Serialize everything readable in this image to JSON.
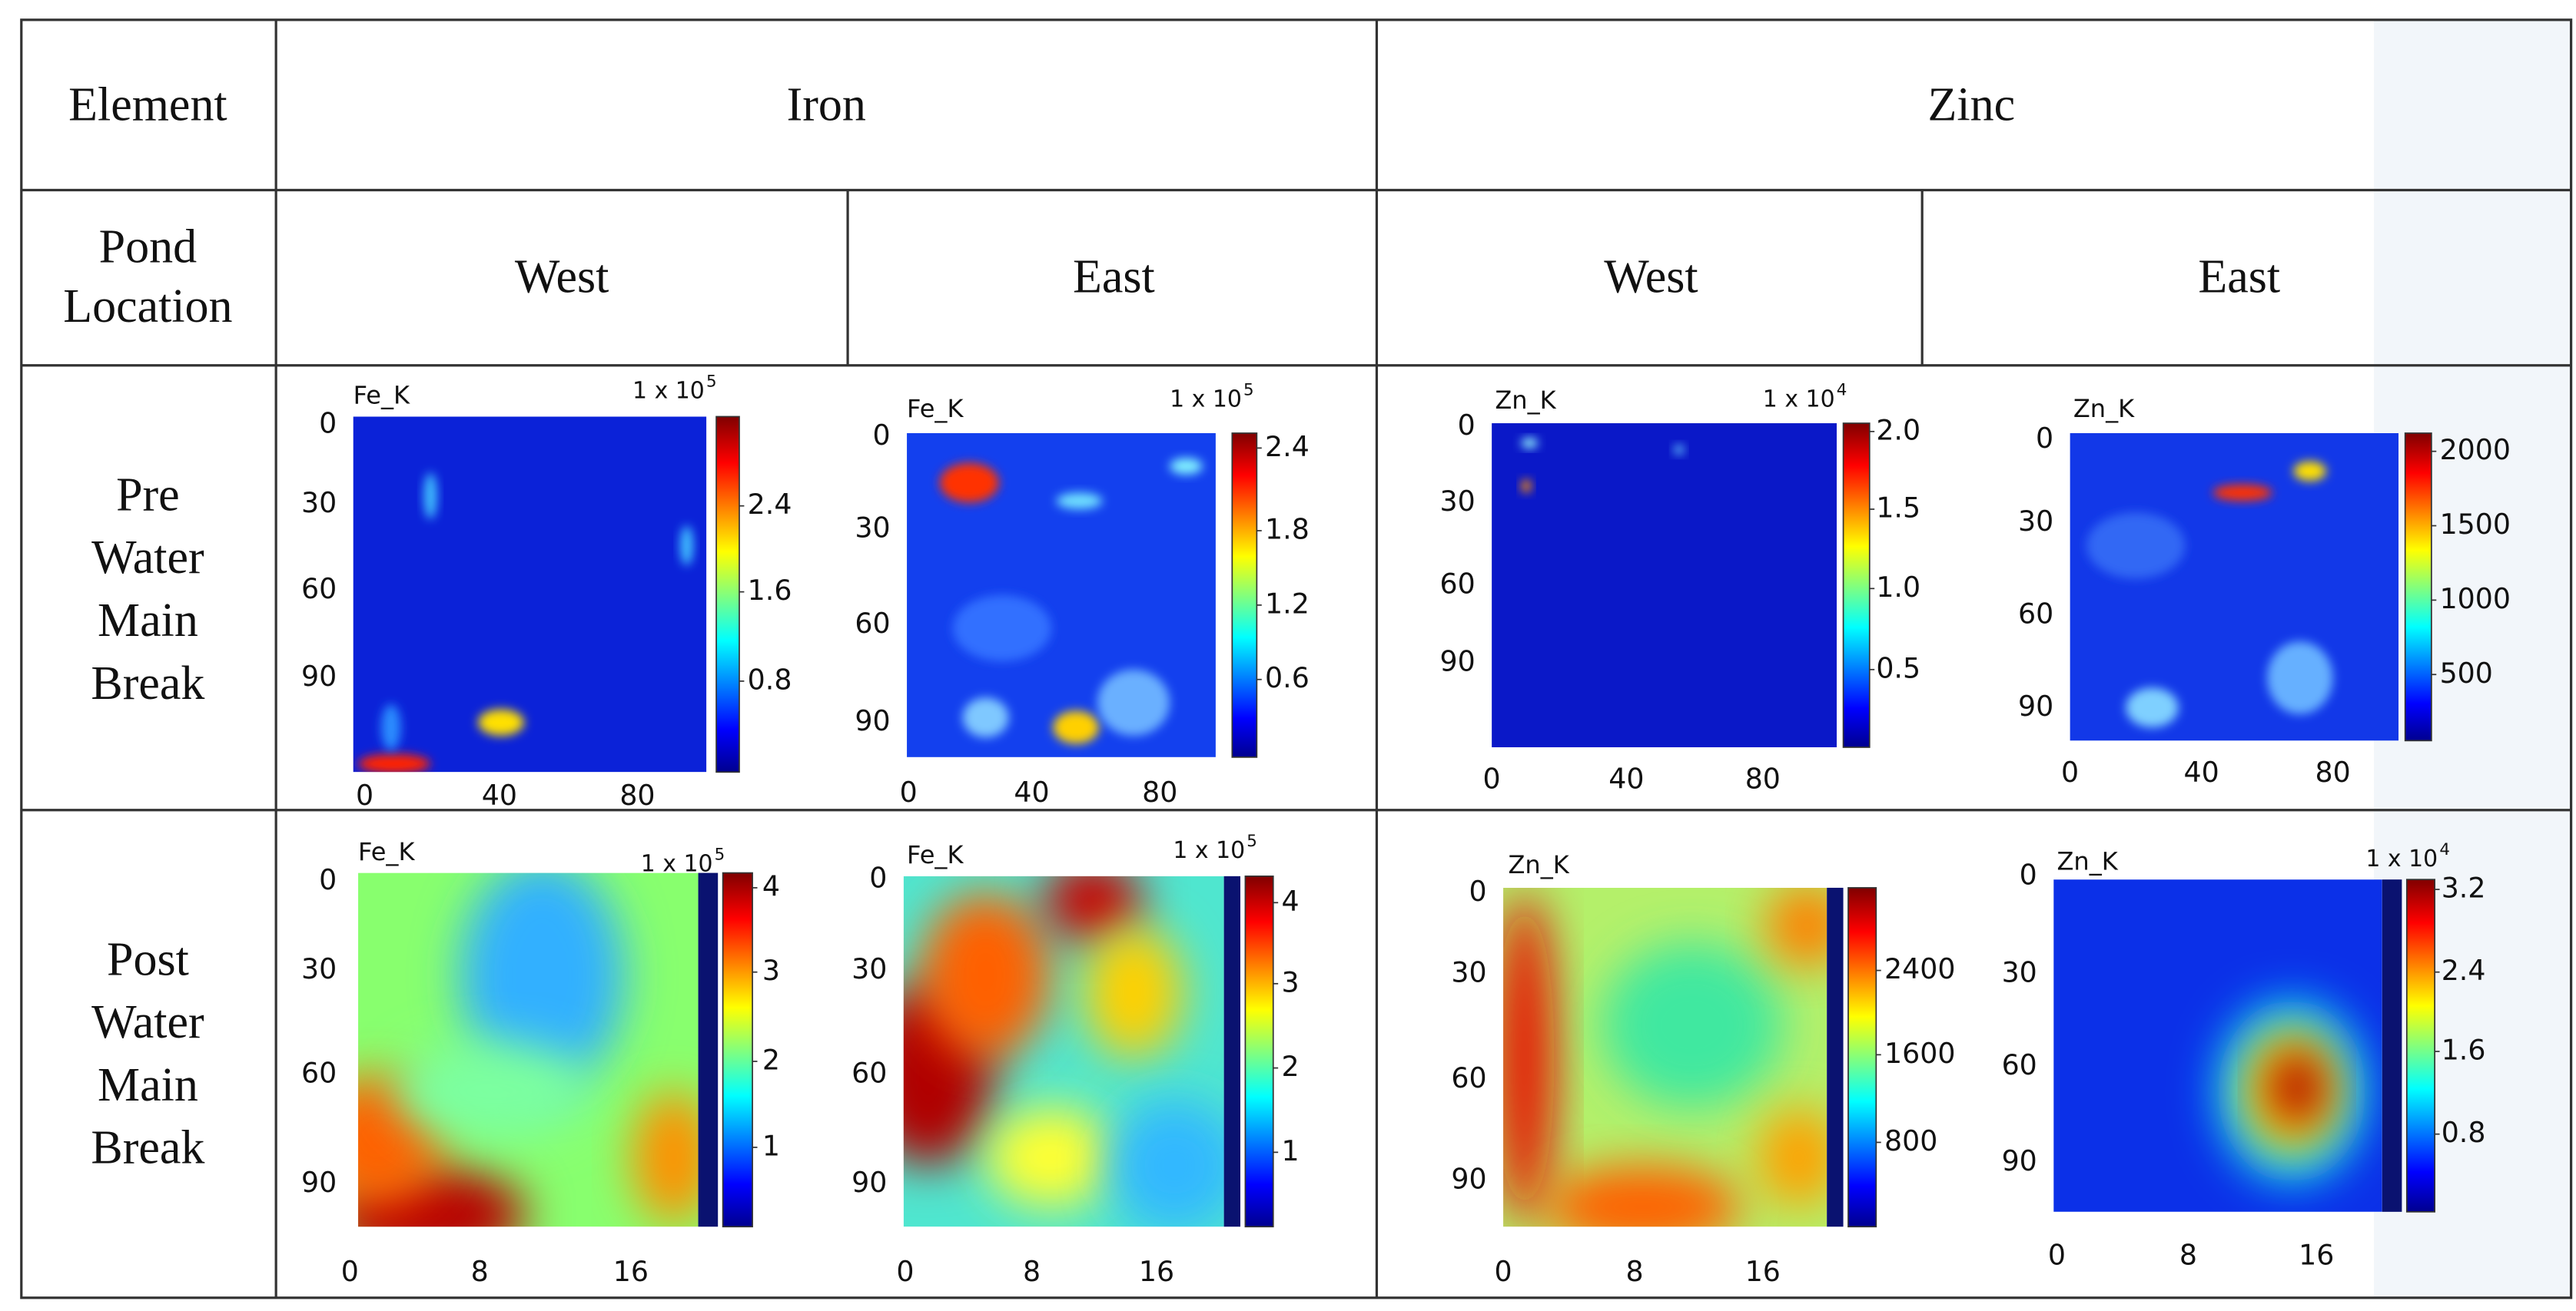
{
  "header": {
    "element": "Element",
    "iron": "Iron",
    "zinc": "Zinc"
  },
  "subheader": {
    "label": [
      "Pond",
      "Location"
    ],
    "columns": [
      "West",
      "East",
      "West",
      "East"
    ]
  },
  "rows": [
    {
      "label": [
        "Pre",
        "Water",
        "Main",
        "Break"
      ],
      "panels": [
        {
          "title": "Fe_K",
          "multiplier": {
            "base": "1 x 10",
            "exponent": "5"
          },
          "yticks": [
            0,
            30,
            60,
            90
          ],
          "xticks": [
            0,
            40,
            80
          ],
          "colorbar_ticks": [
            2.4,
            1.6,
            0.8
          ]
        },
        {
          "title": "Fe_K",
          "multiplier": {
            "base": "1 x 10",
            "exponent": "5"
          },
          "yticks": [
            0,
            30,
            60,
            90
          ],
          "xticks": [
            0,
            40,
            80
          ],
          "colorbar_ticks": [
            2.4,
            1.8,
            1.2,
            0.6
          ]
        },
        {
          "title": "Zn_K",
          "multiplier": {
            "base": "1 x 10",
            "exponent": "4"
          },
          "yticks": [
            0,
            30,
            60,
            90
          ],
          "xticks": [
            0,
            40,
            80
          ],
          "colorbar_ticks": [
            "2.0",
            1.5,
            "1.0",
            0.5
          ]
        },
        {
          "title": "Zn_K",
          "yticks": [
            0,
            30,
            60,
            90
          ],
          "xticks": [
            0,
            40,
            80
          ],
          "colorbar_ticks": [
            2000,
            1500,
            1000,
            500
          ]
        }
      ]
    },
    {
      "label": [
        "Post",
        "Water",
        "Main",
        "Break"
      ],
      "panels": [
        {
          "title": "Fe_K",
          "multiplier": {
            "base": "1 x 10",
            "exponent": "5"
          },
          "yticks": [
            0,
            30,
            60,
            90
          ],
          "xticks": [
            0,
            8,
            16
          ],
          "colorbar_ticks": [
            4,
            3,
            2,
            1
          ]
        },
        {
          "title": "Fe_K",
          "multiplier": {
            "base": "1 x 10",
            "exponent": "5"
          },
          "yticks": [
            0,
            30,
            60,
            90
          ],
          "xticks": [
            0,
            8,
            16
          ],
          "colorbar_ticks": [
            4,
            3,
            2,
            1
          ]
        },
        {
          "title": "Zn_K",
          "yticks": [
            0,
            30,
            60,
            90
          ],
          "xticks": [
            0,
            8,
            16
          ],
          "colorbar_ticks": [
            2400,
            1600,
            800
          ]
        },
        {
          "title": "Zn_K",
          "multiplier": {
            "base": "1 x 10",
            "exponent": "4"
          },
          "yticks": [
            0,
            30,
            60,
            90
          ],
          "xticks": [
            0,
            8,
            16
          ],
          "colorbar_ticks": [
            3.2,
            2.4,
            1.6,
            0.8
          ]
        }
      ]
    }
  ]
}
